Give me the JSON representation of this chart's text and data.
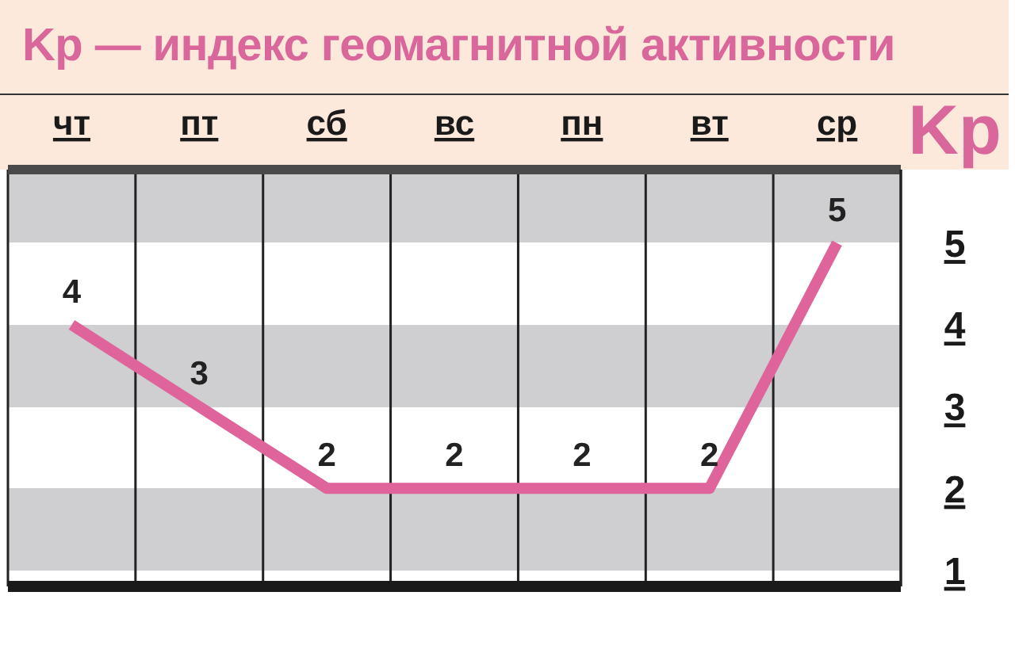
{
  "chart_data": {
    "type": "line",
    "title": "Kp — индекс геомагнитной активности",
    "ylabel": "Kp",
    "categories": [
      "чт",
      "пт",
      "сб",
      "вс",
      "пн",
      "вт",
      "ср"
    ],
    "values": [
      4,
      3,
      2,
      2,
      2,
      2,
      5
    ],
    "color": "#de649b",
    "ylim": [
      0.8,
      5.9
    ],
    "yticks": [
      1,
      2,
      3,
      4,
      5
    ],
    "grid": true,
    "data_labels": true
  }
}
